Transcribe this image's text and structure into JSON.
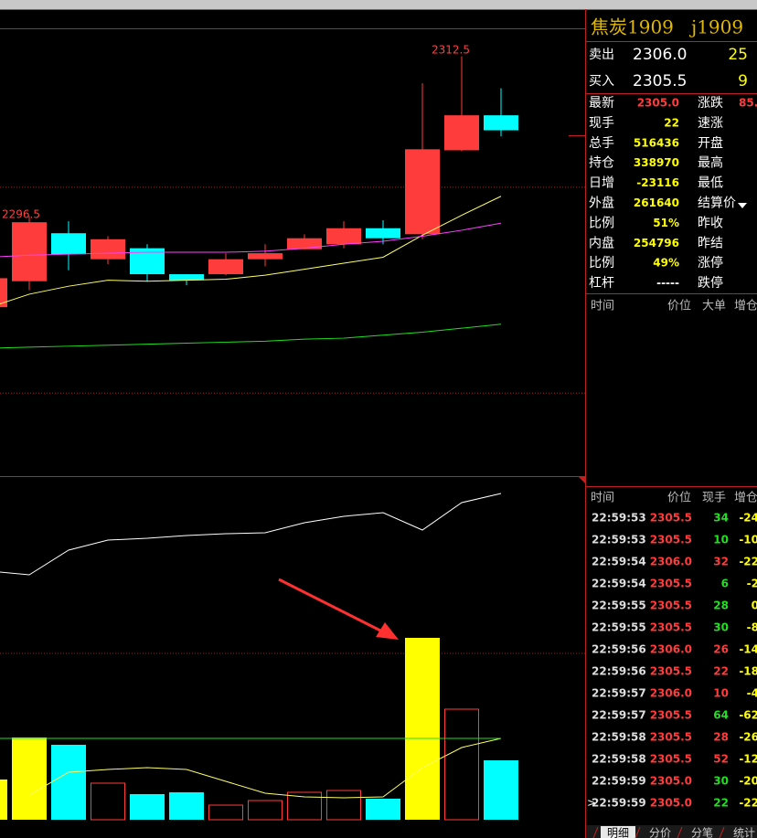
{
  "chart_data": {
    "type": "candlestick",
    "ylim": [
      2270.5,
      2315.3
    ],
    "grid_values": [
      2299.4,
      2278.8
    ],
    "grid": true,
    "up_color": "#ff3c3c",
    "down_color": "#00ffff",
    "candles": [
      {
        "open": 2287.4,
        "high": 2290.3,
        "low": 2287.4,
        "close": 2290.3
      },
      {
        "open": 2290.0,
        "high": 2296.5,
        "low": 2289.1,
        "close": 2295.9
      },
      {
        "open": 2294.8,
        "high": 2296.0,
        "low": 2291.1,
        "close": 2292.7
      },
      {
        "open": 2292.2,
        "high": 2294.5,
        "low": 2291.7,
        "close": 2294.2
      },
      {
        "open": 2293.3,
        "high": 2293.7,
        "low": 2290.0,
        "close": 2290.7
      },
      {
        "open": 2290.7,
        "high": 2290.7,
        "low": 2289.6,
        "close": 2290.1
      },
      {
        "open": 2290.7,
        "high": 2292.8,
        "low": 2290.6,
        "close": 2292.2
      },
      {
        "open": 2292.2,
        "high": 2293.7,
        "low": 2291.5,
        "close": 2292.8
      },
      {
        "open": 2293.2,
        "high": 2294.7,
        "low": 2293.2,
        "close": 2294.3
      },
      {
        "open": 2293.7,
        "high": 2296.0,
        "low": 2293.3,
        "close": 2295.3
      },
      {
        "open": 2295.3,
        "high": 2296.1,
        "low": 2293.7,
        "close": 2294.3
      },
      {
        "open": 2294.7,
        "high": 2309.8,
        "low": 2294.2,
        "close": 2303.2
      },
      {
        "open": 2303.1,
        "high": 2312.5,
        "low": 2303.0,
        "close": 2306.6
      },
      {
        "open": 2306.6,
        "high": 2309.3,
        "low": 2304.5,
        "close": 2305.1
      }
    ],
    "series": [
      {
        "color": "#ffff66",
        "values": [
          2287.4,
          2288.7,
          2289.5,
          2290.1,
          2290.0,
          2290.1,
          2290.2,
          2290.6,
          2291.2,
          2291.8,
          2292.4,
          2294.6,
          2296.6,
          2298.5
        ]
      },
      {
        "color": "#ff40ff",
        "values": [
          2292.4,
          2292.6,
          2292.7,
          2292.8,
          2292.9,
          2292.9,
          2292.9,
          2293.0,
          2293.3,
          2293.7,
          2294.0,
          2294.5,
          2295.1,
          2295.8
        ]
      },
      {
        "color": "#20e020",
        "values": [
          2283.3,
          2283.4,
          2283.5,
          2283.6,
          2283.7,
          2283.8,
          2283.9,
          2284.0,
          2284.2,
          2284.3,
          2284.6,
          2284.9,
          2285.3,
          2285.7
        ]
      }
    ],
    "volume": {
      "ylim": [
        0,
        8000
      ],
      "grid_values": [
        3893
      ],
      "values": [
        941,
        1925,
        1754,
        856,
        599,
        642,
        342,
        449,
        642,
        684,
        492,
        4257,
        2588,
        1390
      ],
      "colors": [
        "#ffff00",
        "#ffff00",
        "#00ffff",
        "#ff3c3c",
        "#00ffff",
        "#00ffff",
        "#ff3c3c",
        "#ff3c3c",
        "#ff3c3c",
        "#ff3c3c",
        "#00ffff",
        "#ffff00",
        "#ff3c3c",
        "#00ffff"
      ],
      "series": [
        {
          "color": "#ffff66",
          "values": [
            null,
            578,
            1112,
            1176,
            1219,
            1176,
            898,
            620,
            535,
            513,
            535,
            1219,
            1690,
            1904
          ]
        },
        {
          "color": "#20e020",
          "values": [
            1904,
            1904,
            1904,
            1904,
            1904,
            1904,
            1904,
            1904,
            1904,
            1904,
            1904,
            1904,
            1904,
            1904
          ]
        }
      ]
    },
    "open_interest": {
      "ylim": [
        331830,
        339310
      ],
      "color": "#ffffff",
      "values": [
        337270,
        337190,
        337730,
        337950,
        337990,
        338050,
        338090,
        338110,
        338330,
        338470,
        338550,
        338170,
        338770,
        338970
      ]
    }
  },
  "panel": {
    "name": "焦炭1909",
    "code": "j1909",
    "quotes": [
      {
        "label": "卖出",
        "price": "2306.0",
        "volume": "25"
      },
      {
        "label": "买入",
        "price": "2305.5",
        "volume": "9"
      }
    ],
    "stats": [
      {
        "label": "最新",
        "value": "2305.0",
        "color": "#ff3c3c",
        "right": "涨跌",
        "right_value": "85."
      },
      {
        "label": "现手",
        "value": "22",
        "color": "#ffff00",
        "right": "速涨"
      },
      {
        "label": "总手",
        "value": "516436",
        "color": "#ffff00",
        "right": "开盘"
      },
      {
        "label": "持仓",
        "value": "338970",
        "color": "#ffff00",
        "right": "最高"
      },
      {
        "label": "日增",
        "value": "-23116",
        "color": "#ffff00",
        "right": "最低"
      },
      {
        "label": "外盘",
        "value": "261640",
        "color": "#ffff00",
        "right": "结算价"
      },
      {
        "label": "比例",
        "value": "51%",
        "color": "#ffff00",
        "right": "昨收"
      },
      {
        "label": "内盘",
        "value": "254796",
        "color": "#ffff00",
        "right": "昨结"
      },
      {
        "label": "比例",
        "value": "49%",
        "color": "#ffff00",
        "right": "涨停"
      },
      {
        "label": "杠杆",
        "value": "-----",
        "color": "#ffffff",
        "right": "跌停"
      }
    ],
    "big_header": [
      "时间",
      "价位",
      "大单",
      "增仓"
    ],
    "tick_header": [
      "时间",
      "价位",
      "现手",
      "增仓"
    ],
    "ticks": [
      {
        "time": "22:59:53",
        "price": "2305.5",
        "volume": "34",
        "color": "#20e020",
        "change": "-24"
      },
      {
        "time": "22:59:53",
        "price": "2305.5",
        "volume": "10",
        "color": "#20e020",
        "change": "-10"
      },
      {
        "time": "22:59:54",
        "price": "2306.0",
        "volume": "32",
        "color": "#ff3c3c",
        "change": "-22"
      },
      {
        "time": "22:59:54",
        "price": "2305.5",
        "volume": "6",
        "color": "#20e020",
        "change": "-2"
      },
      {
        "time": "22:59:55",
        "price": "2305.5",
        "volume": "28",
        "color": "#20e020",
        "change": "0"
      },
      {
        "time": "22:59:55",
        "price": "2305.5",
        "volume": "30",
        "color": "#20e020",
        "change": "-8"
      },
      {
        "time": "22:59:56",
        "price": "2306.0",
        "volume": "26",
        "color": "#ff3c3c",
        "change": "-14"
      },
      {
        "time": "22:59:56",
        "price": "2305.5",
        "volume": "22",
        "color": "#ff3c3c",
        "change": "-18"
      },
      {
        "time": "22:59:57",
        "price": "2306.0",
        "volume": "10",
        "color": "#ff3c3c",
        "change": "-4"
      },
      {
        "time": "22:59:57",
        "price": "2305.5",
        "volume": "64",
        "color": "#20e020",
        "change": "-62"
      },
      {
        "time": "22:59:58",
        "price": "2305.5",
        "volume": "28",
        "color": "#ff3c3c",
        "change": "-26"
      },
      {
        "time": "22:59:58",
        "price": "2305.5",
        "volume": "52",
        "color": "#ff3c3c",
        "change": "-12"
      },
      {
        "time": "22:59:59",
        "price": "2305.0",
        "volume": "30",
        "color": "#20e020",
        "change": "-20"
      },
      {
        "time": "22:59:59",
        "price": "2305.0",
        "volume": "22",
        "color": "#20e020",
        "change": "-22"
      }
    ],
    "tabs": [
      "明细",
      "分价",
      "分笔",
      "统计"
    ]
  }
}
